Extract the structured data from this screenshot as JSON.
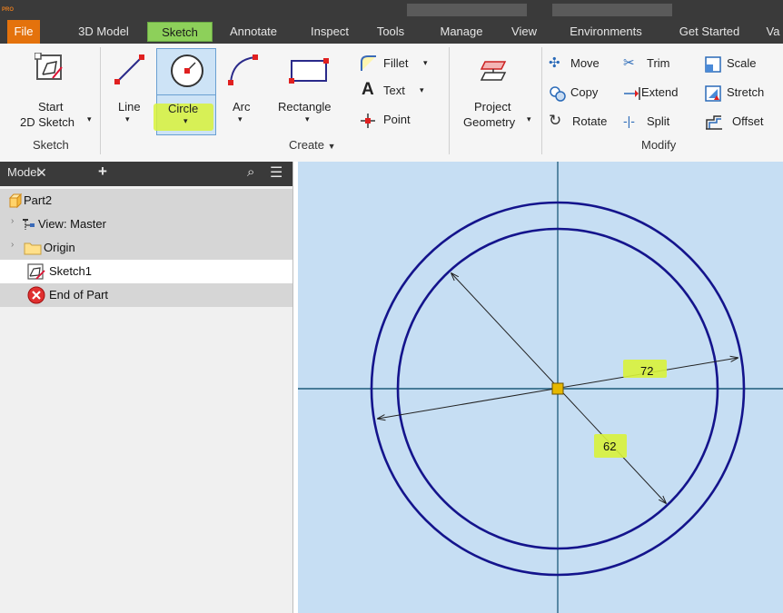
{
  "tabs": [
    "File",
    "3D Model",
    "Sketch",
    "Annotate",
    "Inspect",
    "Tools",
    "Manage",
    "View",
    "Environments",
    "Get Started",
    "Va"
  ],
  "ribbon": {
    "start_sketch_line1": "Start",
    "start_sketch_line2": "2D Sketch",
    "line": "Line",
    "circle": "Circle",
    "arc": "Arc",
    "rectangle": "Rectangle",
    "fillet": "Fillet",
    "text": "Text",
    "point": "Point",
    "project_line1": "Project",
    "project_line2": "Geometry",
    "move": "Move",
    "trim": "Trim",
    "scale": "Scale",
    "copy": "Copy",
    "extend": "Extend",
    "stretch": "Stretch",
    "rotate": "Rotate",
    "split": "Split",
    "offset": "Offset",
    "groups": {
      "sketch": "Sketch",
      "create": "Create",
      "modify": "Modify"
    }
  },
  "browser": {
    "tab": "Model",
    "items": [
      "Part2",
      "View: Master",
      "Origin",
      "Sketch1",
      "End of Part"
    ]
  },
  "dimensions": {
    "outer": "72",
    "inner": "62"
  }
}
